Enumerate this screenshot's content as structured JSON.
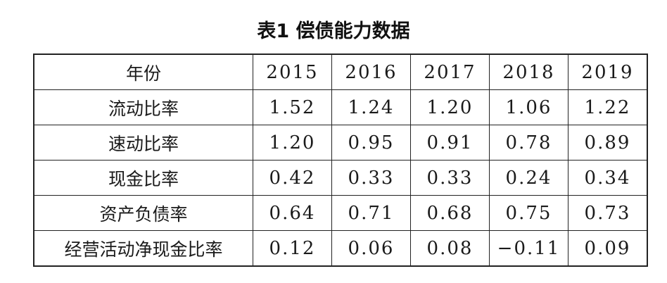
{
  "header": {
    "title": "表1  偿债能力数据"
  },
  "table": {
    "columns": [
      "年份",
      "2015",
      "2016",
      "2017",
      "2018",
      "2019"
    ],
    "rows": [
      [
        "流动比率",
        "1.52",
        "1.24",
        "1.20",
        "1.06",
        "1.22"
      ],
      [
        "速动比率",
        "1.20",
        "0.95",
        "0.91",
        "0.78",
        "0.89"
      ],
      [
        "现金比率",
        "0.42",
        "0.33",
        "0.33",
        "0.24",
        "0.34"
      ],
      [
        "资产负债率",
        "0.64",
        "0.71",
        "0.68",
        "0.75",
        "0.73"
      ],
      [
        "经营活动净现金比率",
        "0.12",
        "0.06",
        "0.08",
        "−0.11",
        "0.09"
      ]
    ]
  }
}
